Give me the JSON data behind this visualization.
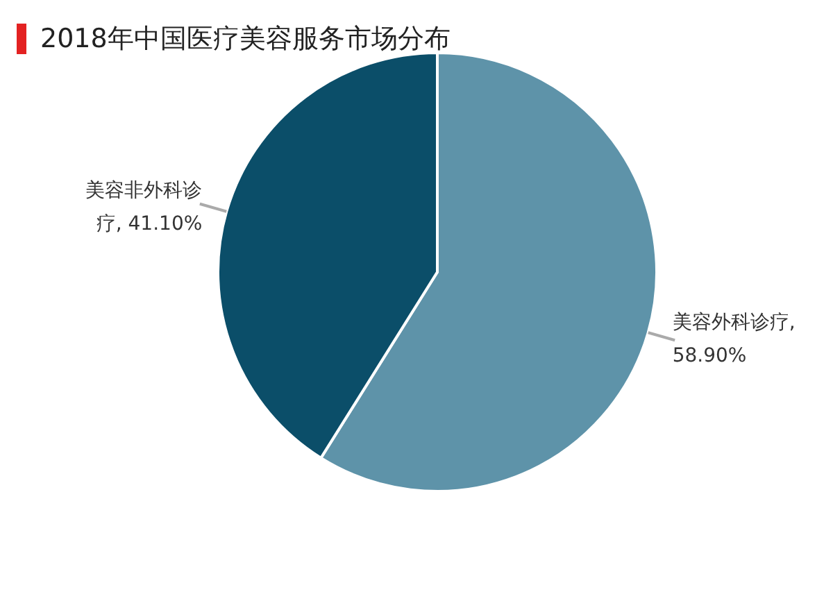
{
  "chart_data": {
    "type": "pie",
    "title": "2018年中国医疗美容服务市场分布",
    "categories": [
      "美容外科诊疗",
      "美容非外科诊疗"
    ],
    "values": [
      58.9,
      41.1
    ],
    "colors": [
      "#5e93a9",
      "#0b4e69"
    ],
    "value_labels": [
      ", 58.90%",
      ", 41.10%"
    ],
    "legend": false
  }
}
